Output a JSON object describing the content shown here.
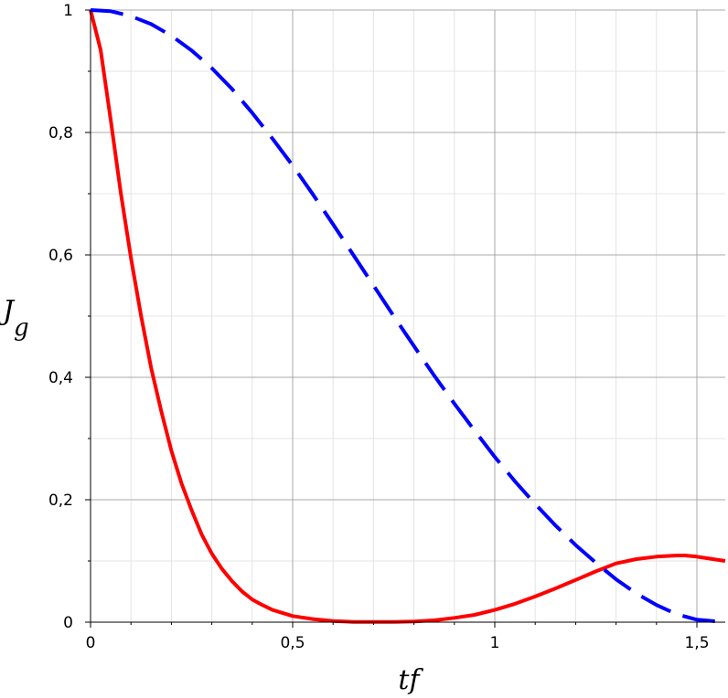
{
  "chart_data": {
    "type": "line",
    "title": "",
    "xlabel": "tf",
    "ylabel": {
      "main": "J",
      "sub": "g"
    },
    "xlim": [
      0,
      1.57
    ],
    "ylim": [
      0,
      1
    ],
    "x_ticks": [
      {
        "value": 0,
        "label": "0"
      },
      {
        "value": 0.5,
        "label": "0,5"
      },
      {
        "value": 1,
        "label": "1"
      },
      {
        "value": 1.5,
        "label": "1,5"
      }
    ],
    "y_ticks": [
      {
        "value": 0,
        "label": "0"
      },
      {
        "value": 0.2,
        "label": "0,2"
      },
      {
        "value": 0.4,
        "label": "0,4"
      },
      {
        "value": 0.6,
        "label": "0,6"
      },
      {
        "value": 0.8,
        "label": "0,8"
      },
      {
        "value": 1,
        "label": "1"
      }
    ],
    "x_minor_step": 0.1,
    "y_minor_step": 0.1,
    "grid": true,
    "series": [
      {
        "color": "#ff0000",
        "style": "solid",
        "x": [
          0,
          0.025,
          0.05,
          0.075,
          0.1,
          0.125,
          0.15,
          0.175,
          0.2,
          0.225,
          0.25,
          0.275,
          0.3,
          0.325,
          0.35,
          0.375,
          0.4,
          0.425,
          0.45,
          0.5,
          0.55,
          0.6,
          0.65,
          0.7,
          0.75,
          0.8,
          0.85,
          0.9,
          0.95,
          1.0,
          1.05,
          1.1,
          1.15,
          1.2,
          1.25,
          1.3,
          1.35,
          1.4,
          1.45,
          1.47,
          1.5,
          1.57
        ],
        "y": [
          1.0,
          0.935,
          0.82,
          0.7,
          0.595,
          0.5,
          0.415,
          0.345,
          0.28,
          0.227,
          0.183,
          0.143,
          0.112,
          0.087,
          0.067,
          0.05,
          0.037,
          0.028,
          0.02,
          0.01,
          0.005,
          0.002,
          0.0005,
          0.0003,
          0.0005,
          0.001,
          0.003,
          0.007,
          0.012,
          0.02,
          0.03,
          0.042,
          0.055,
          0.069,
          0.083,
          0.096,
          0.103,
          0.107,
          0.109,
          0.109,
          0.107,
          0.1
        ]
      },
      {
        "color": "#0000ff",
        "style": "dashed",
        "x": [
          0,
          0.05,
          0.1,
          0.15,
          0.2,
          0.25,
          0.3,
          0.35,
          0.4,
          0.45,
          0.5,
          0.55,
          0.6,
          0.65,
          0.7,
          0.75,
          0.8,
          0.85,
          0.9,
          0.95,
          1.0,
          1.05,
          1.1,
          1.15,
          1.2,
          1.25,
          1.3,
          1.35,
          1.4,
          1.45,
          1.5,
          1.57
        ],
        "y": [
          1.0,
          0.998,
          0.99,
          0.977,
          0.958,
          0.934,
          0.905,
          0.871,
          0.832,
          0.79,
          0.746,
          0.699,
          0.65,
          0.6,
          0.55,
          0.5,
          0.451,
          0.403,
          0.357,
          0.313,
          0.27,
          0.23,
          0.193,
          0.158,
          0.126,
          0.097,
          0.07,
          0.047,
          0.028,
          0.013,
          0.004,
          0.0
        ]
      }
    ]
  }
}
